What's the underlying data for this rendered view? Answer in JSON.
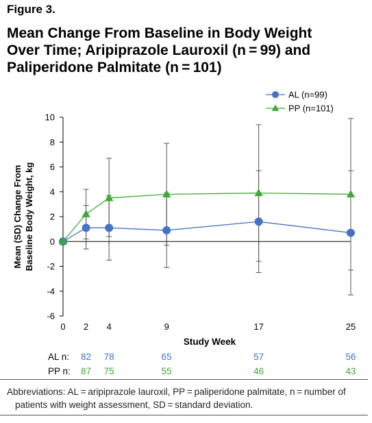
{
  "figure_label": "Figure 3.",
  "title_line1": "Mean Change From Baseline in Body Weight",
  "title_line2": "Over Time; Aripiprazole Lauroxil (n = 99) and",
  "title_line3": "Paliperidone Palmitate (n = 101)",
  "footnote_line1": "Abbreviations: AL = aripiprazole lauroxil, PP = paliperidone palmitate, n = number of",
  "footnote_line2": "patients with weight assessment, SD = standard deviation.",
  "colors": {
    "al": "#4472C4",
    "pp": "#3DAA35",
    "axis": "#000000",
    "error": "#555555"
  },
  "chart_data": {
    "type": "line",
    "xlabel": "Study Week",
    "ylabel_line1": "Mean (SD) Change From",
    "ylabel_line2": "Baseline Body Weight, kg",
    "x": [
      0,
      2,
      4,
      9,
      17,
      25
    ],
    "xticks": [
      "0",
      "2",
      "4",
      "9",
      "17",
      "25"
    ],
    "xlim": [
      0,
      25
    ],
    "ylim": [
      -6,
      10
    ],
    "yticks": [
      "10",
      "8",
      "6",
      "4",
      "2",
      "0",
      "-2",
      "-4",
      "-6"
    ],
    "legend_position": "top-right",
    "series": [
      {
        "name": "AL (n=99)",
        "marker": "circle",
        "values": [
          0,
          1.1,
          1.1,
          0.9,
          1.6,
          0.7
        ],
        "sd_low": [
          0,
          -0.6,
          -1.5,
          -2.1,
          -2.5,
          -4.3
        ],
        "sd_high": [
          0,
          2.9,
          3.7,
          3.9,
          5.7,
          5.7
        ],
        "n_label": "AL n:",
        "n": [
          "",
          "82",
          "78",
          "65",
          "57",
          "56"
        ]
      },
      {
        "name": "PP (n=101)",
        "marker": "triangle",
        "values": [
          0,
          2.2,
          3.5,
          3.8,
          3.9,
          3.8
        ],
        "sd_low": [
          0,
          0.2,
          0.4,
          -0.3,
          -1.6,
          -2.3
        ],
        "sd_high": [
          0,
          4.2,
          6.7,
          7.9,
          9.4,
          9.9
        ],
        "n_label": "PP n:",
        "n": [
          "",
          "87",
          "75",
          "55",
          "46",
          "43"
        ]
      }
    ]
  }
}
